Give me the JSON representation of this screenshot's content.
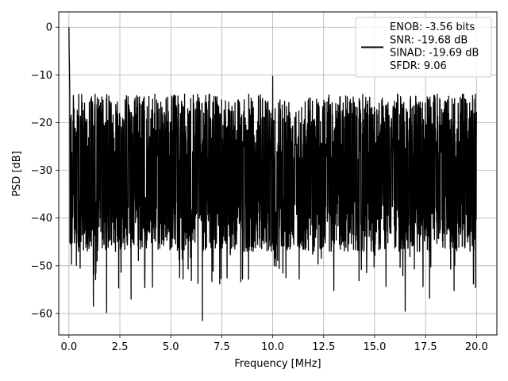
{
  "chart_data": {
    "type": "line",
    "xlabel": "Frequency [MHz]",
    "ylabel": "PSD [dB]",
    "xlim": [
      -0.5,
      21.0
    ],
    "ylim": [
      -64.5,
      3.2
    ],
    "x_ticks": [
      0.0,
      2.5,
      5.0,
      7.5,
      10.0,
      12.5,
      15.0,
      17.5,
      20.0
    ],
    "x_tick_labels": [
      "0.0",
      "2.5",
      "5.0",
      "7.5",
      "10.0",
      "12.5",
      "15.0",
      "17.5",
      "20.0"
    ],
    "y_ticks": [
      0,
      -10,
      -20,
      -30,
      -40,
      -50,
      -60
    ],
    "y_tick_labels": [
      "0",
      "−10",
      "−20",
      "−30",
      "−40",
      "−50",
      "−60"
    ],
    "grid": true,
    "legend_position": "top-right",
    "series": [
      {
        "name": "ENOB: -3.56 bits\nSNR: -19.68 dB\nSINAD: -19.69 dB\nSFDR: 9.06",
        "color": "#000000",
        "x_range": [
          0.0,
          20.0
        ],
        "peak": {
          "x": 0.0,
          "y": 0.0
        },
        "spur": {
          "x": 10.0,
          "y": -10.3
        },
        "noise_floor_typical_range": [
          -40,
          -17
        ],
        "deep_notches": [
          {
            "x": 0.55,
            "y": -50.5
          },
          {
            "x": 1.2,
            "y": -58.5
          },
          {
            "x": 1.85,
            "y": -59.8
          },
          {
            "x": 3.05,
            "y": -57.0
          },
          {
            "x": 4.1,
            "y": -54.5
          },
          {
            "x": 5.6,
            "y": -52.8
          },
          {
            "x": 6.55,
            "y": -61.5
          },
          {
            "x": 7.4,
            "y": -53.8
          },
          {
            "x": 10.5,
            "y": -51.5
          },
          {
            "x": 11.3,
            "y": -52.8
          },
          {
            "x": 13.0,
            "y": -55.2
          },
          {
            "x": 16.5,
            "y": -59.5
          },
          {
            "x": 17.7,
            "y": -56.8
          },
          {
            "x": 18.9,
            "y": -55.2
          }
        ]
      }
    ]
  }
}
